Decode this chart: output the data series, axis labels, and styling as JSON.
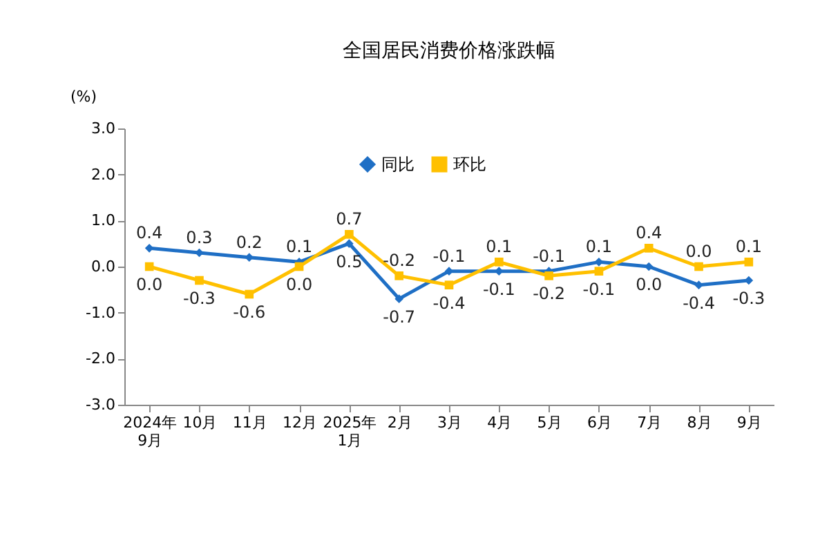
{
  "chart_data": {
    "type": "line",
    "title": "全国居民消费价格涨跌幅",
    "ylabel": "(%)",
    "categories": [
      "2024年\n9月",
      "10月",
      "11月",
      "12月",
      "2025年\n1月",
      "2月",
      "3月",
      "4月",
      "5月",
      "6月",
      "7月",
      "8月",
      "9月"
    ],
    "series": [
      {
        "name": "同比",
        "color": "#1f6fc5",
        "marker": "diamond",
        "values": [
          0.4,
          0.3,
          0.2,
          0.1,
          0.5,
          -0.7,
          -0.1,
          -0.1,
          -0.1,
          0.1,
          0.0,
          -0.4,
          -0.3
        ],
        "value_labels": [
          "0.4",
          "0.3",
          "0.2",
          "0.1",
          "0.5",
          "-0.7",
          "-0.1",
          "-0.1",
          "-0.1",
          "0.1",
          "0.0",
          "-0.4",
          "-0.3"
        ]
      },
      {
        "name": "环比",
        "color": "#ffc000",
        "marker": "square",
        "values": [
          0.0,
          -0.3,
          -0.6,
          0.0,
          0.7,
          -0.2,
          -0.4,
          0.1,
          -0.2,
          -0.1,
          0.4,
          0.0,
          0.1
        ],
        "value_labels": [
          "0.0",
          "-0.3",
          "-0.6",
          "0.0",
          "0.7",
          "-0.2",
          "-0.4",
          "0.1",
          "-0.2",
          "-0.1",
          "0.4",
          "0.0",
          "0.1"
        ]
      }
    ],
    "ylim": [
      -3.0,
      3.0
    ],
    "yticks": [
      {
        "value": -3,
        "label": "-3.0"
      },
      {
        "value": -2,
        "label": "-2.0"
      },
      {
        "value": -1,
        "label": "-1.0"
      },
      {
        "value": 0,
        "label": "0.0"
      },
      {
        "value": 1,
        "label": "1.0"
      },
      {
        "value": 2,
        "label": "2.0"
      },
      {
        "value": 3,
        "label": "3.0"
      }
    ],
    "legend": "top",
    "grid": false,
    "line_style": "solid"
  }
}
